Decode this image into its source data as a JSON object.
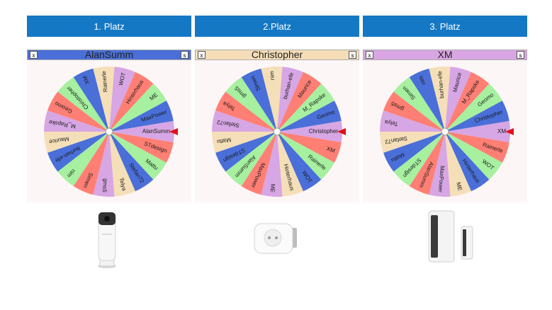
{
  "columns": [
    {
      "place_label": "1. Platz",
      "wheel_title": "AlanSumm",
      "title_color": "#4a6fd8",
      "close_label": "x",
      "size_label": "s",
      "rotation": 0,
      "names": [
        "AlanSumm",
        "STdesign",
        "Mattu",
        "Stefan72",
        "Telya",
        "gms5",
        "Simen",
        "nim",
        "burhan-efe",
        "Maurice",
        "M_Rapske",
        "Geomo",
        "Christopher",
        "XM",
        "Rainerle",
        "WOT",
        "Hinterhaus",
        "ME",
        "MaxPower"
      ],
      "product_icon": "indoor-camera-icon"
    },
    {
      "place_label": "2.Platz",
      "wheel_title": "Christopher",
      "title_color": "#f5ddb8",
      "close_label": "x",
      "size_label": "s",
      "rotation": 0,
      "names": [
        "Christopher",
        "XM",
        "Rainerle",
        "WOT",
        "Hinterhaus",
        "ME",
        "MaxPower",
        "AlanSumm",
        "STdesign",
        "Mattu",
        "Stefan72",
        "Telya",
        "gms5",
        "Simen",
        "nim",
        "burhan-efe",
        "Maurice",
        "M_Rapske",
        "Geomo"
      ],
      "product_icon": "smart-plug-icon"
    },
    {
      "place_label": "3. Platz",
      "wheel_title": "XM",
      "title_color": "#d9a6e3",
      "close_label": "x",
      "size_label": "s",
      "rotation": 0,
      "names": [
        "XM",
        "Rainerle",
        "WOT",
        "Hinterhaus",
        "ME",
        "MaxPower",
        "AlanSumm",
        "STdesign",
        "Mattu",
        "Stefan72",
        "Telya",
        "gms5",
        "Simen",
        "nim",
        "burhan-efe",
        "Maurice",
        "M_Rapske",
        "Geomo",
        "Christopher"
      ],
      "product_icon": "door-window-contact-icon"
    }
  ],
  "wheel_style": {
    "segment_colors": [
      "#d7a6e4",
      "#ff7f74",
      "#a6f0a0",
      "#4a6fd8",
      "#f5dfb8"
    ],
    "pointer_color": "#e0101a",
    "hub_color": "#ffffff"
  }
}
